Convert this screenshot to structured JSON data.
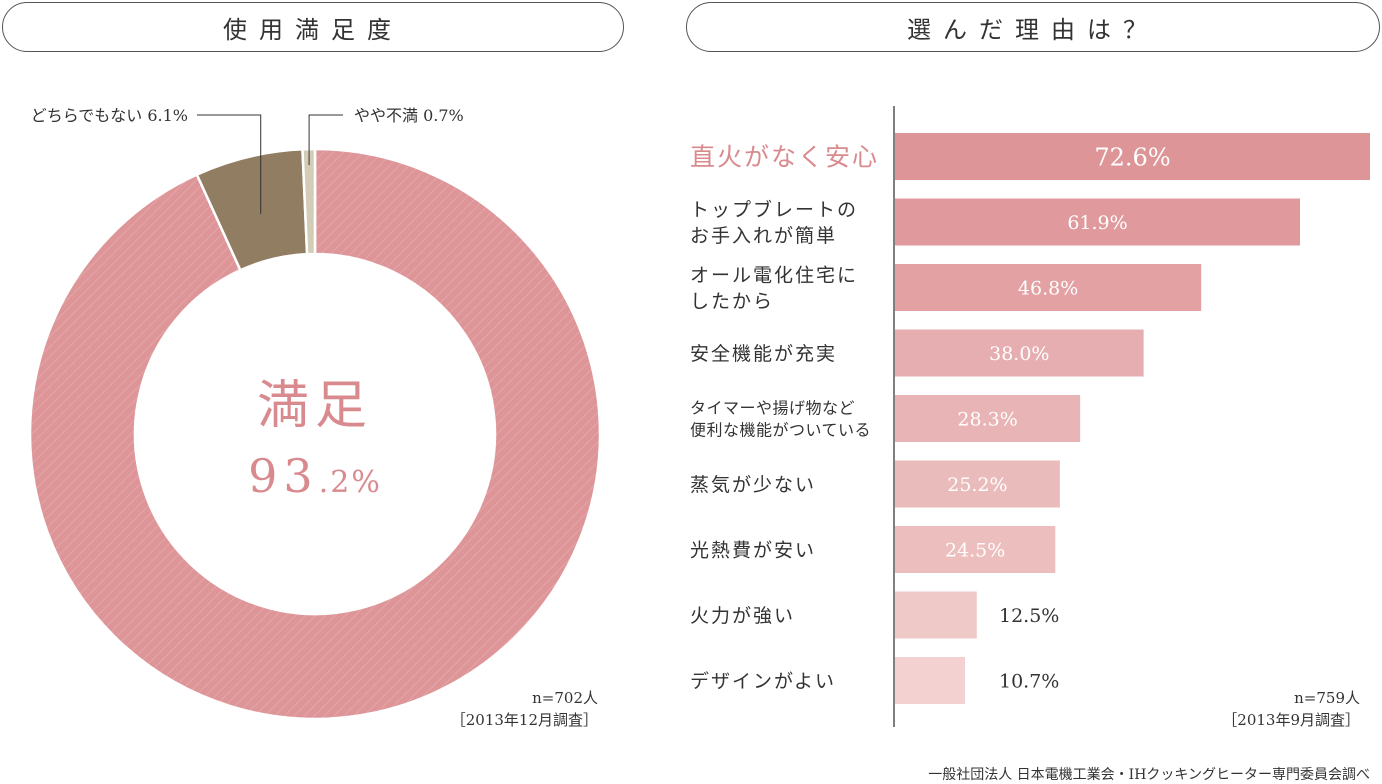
{
  "left": {
    "heading": "使用満足度",
    "center_label": "満足",
    "center_value": "93",
    "center_decimal": ".2%",
    "n": "n=702人",
    "survey_date": "［2013年12月調査］"
  },
  "right": {
    "heading": "選んだ理由は？",
    "n": "n=759人",
    "survey_date": "［2013年9月調査］"
  },
  "source": "一般社団法人 日本電機工業会・IHクッキングヒーター専門委員会調べ",
  "colors": {
    "satisfied": "#de9598",
    "neutral": "#917e62",
    "unsatisfied": "#d3cdb8",
    "highlight_text": "#d98a8e"
  },
  "chart_data": [
    {
      "type": "pie",
      "variant": "donut",
      "slices": [
        {
          "label": "満足",
          "value": 93.2,
          "value_label": "93.2%"
        },
        {
          "label": "どちらでもない",
          "value": 6.1,
          "value_label": "6.1%"
        },
        {
          "label": "やや不満",
          "value": 0.7,
          "value_label": "0.7%"
        }
      ]
    },
    {
      "type": "bar",
      "orientation": "horizontal",
      "categories": [
        [
          "直火がなく安心"
        ],
        [
          "トップブレートの",
          "お手入れが簡単"
        ],
        [
          "オール電化住宅に",
          "したから"
        ],
        [
          "安全機能が充実"
        ],
        [
          "タイマーや揚げ物など",
          "便利な機能がついている"
        ],
        [
          "蒸気が少ない"
        ],
        [
          "光熱費が安い"
        ],
        [
          "火力が強い"
        ],
        [
          "デザインがよい"
        ]
      ],
      "values": [
        72.6,
        61.9,
        46.8,
        38.0,
        28.3,
        25.2,
        24.5,
        12.5,
        10.7
      ],
      "value_labels": [
        "72.6%",
        "61.9%",
        "46.8%",
        "38.0%",
        "28.3%",
        "25.2%",
        "24.5%",
        "12.5%",
        "10.7%"
      ],
      "bar_colors": [
        "#de9598",
        "#e0999c",
        "#e3a1a4",
        "#e6aeb0",
        "#e9b4b5",
        "#eabbbb",
        "#ecbebe",
        "#efc9c8",
        "#f2d1d0"
      ],
      "xlim": [
        0,
        72.6
      ],
      "grid": false
    }
  ]
}
